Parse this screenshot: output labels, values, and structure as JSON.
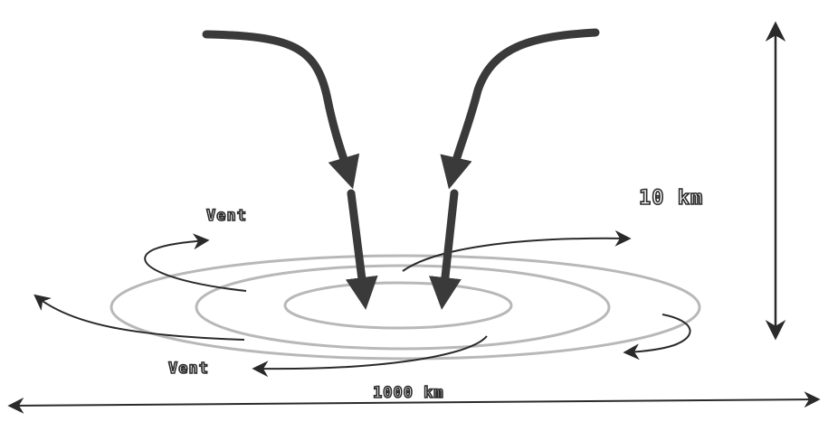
{
  "labels": {
    "vent_upper": "Vent",
    "vent_lower": "Vent",
    "height": "10 km",
    "width": "1000 km"
  },
  "colors": {
    "ink": "#2a2a2a",
    "thick_arrow": "#3a3a3a",
    "background": "#ffffff"
  }
}
